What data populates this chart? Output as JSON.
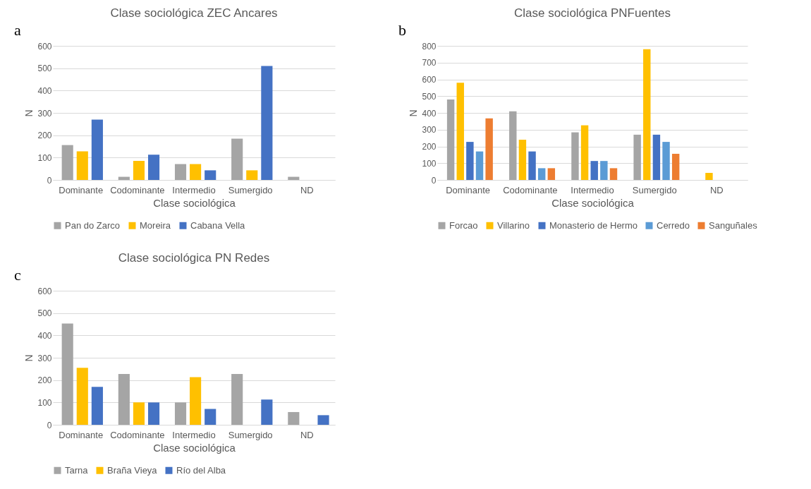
{
  "chart_data": [
    {
      "type": "bar",
      "title": "Clase sociológica ZEC Ancares",
      "xlabel": "Clase sociológica",
      "ylabel": "N",
      "annotations": [
        "a"
      ],
      "categories": [
        "Dominante",
        "Codominante",
        "Intermedio",
        "Sumergido",
        "ND"
      ],
      "series": [
        {
          "name": "Pan do Zarco",
          "color": "#a5a5a5",
          "values": [
            156,
            14,
            71,
            185,
            14
          ]
        },
        {
          "name": "Moreira",
          "color": "#ffc000",
          "values": [
            128,
            85,
            71,
            43,
            null
          ]
        },
        {
          "name": "Cabana Vella",
          "color": "#4472c4",
          "values": [
            270,
            113,
            43,
            510,
            null
          ]
        }
      ],
      "ylim": [
        0,
        600
      ],
      "yticks": [
        0,
        100,
        200,
        300,
        400,
        500,
        600
      ],
      "grid": "y",
      "legend": "bottom"
    },
    {
      "type": "bar",
      "title": "Clase sociológica PNFuentes",
      "xlabel": "Clase sociológica",
      "ylabel": "N",
      "annotations": [
        "b"
      ],
      "categories": [
        "Dominante",
        "Codominante",
        "Intermedio",
        "Sumergido",
        "ND"
      ],
      "series": [
        {
          "name": "Forcao",
          "color": "#a5a5a5",
          "values": [
            480,
            410,
            284,
            270,
            null
          ]
        },
        {
          "name": "Villarino",
          "color": "#ffc000",
          "values": [
            580,
            240,
            326,
            780,
            42
          ]
        },
        {
          "name": "Monasterio de Hermo",
          "color": "#4472c4",
          "values": [
            227,
            170,
            113,
            270,
            null
          ]
        },
        {
          "name": "Cerredo",
          "color": "#5b9bd5",
          "values": [
            170,
            70,
            113,
            227,
            null
          ]
        },
        {
          "name": "Sanguñales",
          "color": "#ed7d31",
          "values": [
            367,
            70,
            70,
            156,
            null
          ]
        }
      ],
      "ylim": [
        0,
        800
      ],
      "yticks": [
        0,
        100,
        200,
        300,
        400,
        500,
        600,
        700,
        800
      ],
      "grid": "y",
      "legend": "bottom"
    },
    {
      "type": "bar",
      "title": "Clase sociológica PN Redes",
      "xlabel": "Clase sociológica",
      "ylabel": "N",
      "annotations": [
        "c"
      ],
      "categories": [
        "Dominante",
        "Codominante",
        "Intermedio",
        "Sumergido",
        "ND"
      ],
      "series": [
        {
          "name": "Tarna",
          "color": "#a5a5a5",
          "values": [
            453,
            227,
            100,
            227,
            57
          ]
        },
        {
          "name": "Braña Vieya",
          "color": "#ffc000",
          "values": [
            255,
            100,
            213,
            null,
            null
          ]
        },
        {
          "name": "Río del Alba",
          "color": "#4472c4",
          "values": [
            170,
            100,
            71,
            113,
            43
          ]
        }
      ],
      "ylim": [
        0,
        600
      ],
      "yticks": [
        0,
        100,
        200,
        300,
        400,
        500,
        600
      ],
      "grid": "y",
      "legend": "bottom"
    }
  ]
}
